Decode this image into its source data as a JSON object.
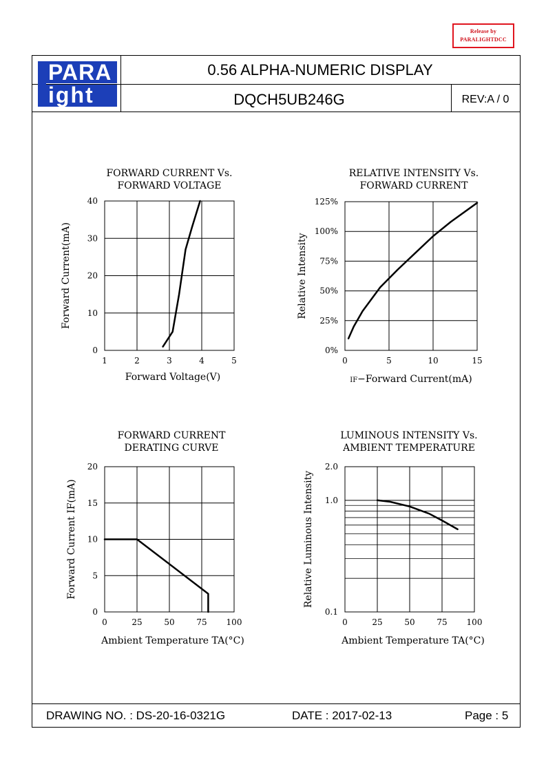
{
  "stamp": {
    "line1": "Release      by",
    "line2": "PARALIGHTDCC"
  },
  "logo": {
    "line1": "PARA",
    "line2": "ight"
  },
  "header": {
    "title": "0.56 ALPHA-NUMERIC DISPLAY",
    "model": "DQCH5UB246G",
    "revision": "REV:A / 0"
  },
  "footer": {
    "drawing_no": "DRAWING NO. : DS-20-16-0321G",
    "date": "DATE : 2017-02-13",
    "page": "Page : 5"
  },
  "chart_data": [
    {
      "type": "line",
      "title": [
        "FORWARD  CURRENT  Vs.",
        "FORWARD  VOLTAGE"
      ],
      "xlabel": "Forward  Voltage(V)",
      "ylabel": "Forward  Current(mA)",
      "xticks": [
        "1",
        "2",
        "3",
        "4",
        "5"
      ],
      "yticks": [
        "0",
        "10",
        "20",
        "30",
        "40"
      ],
      "xlim": [
        1,
        5
      ],
      "ylim": [
        0,
        40
      ],
      "grid": true,
      "x": [
        2.8,
        3.1,
        3.3,
        3.5,
        3.7,
        3.95
      ],
      "y": [
        1,
        5,
        15,
        27,
        33,
        40
      ]
    },
    {
      "type": "line",
      "title": [
        "RELATIVE  INTENSITY  Vs.",
        "FORWARD  CURRENT"
      ],
      "xlabel_prefix": "IF",
      "xlabel": "−Forward  Current(mA)",
      "ylabel": "Relative  Intensity",
      "xticks": [
        "0",
        "5",
        "10",
        "15"
      ],
      "yticks": [
        "0%",
        "25%",
        "50%",
        "75%",
        "100%",
        "125%"
      ],
      "xlim": [
        0,
        15
      ],
      "ylim": [
        0,
        125
      ],
      "grid": true,
      "x": [
        0.4,
        1,
        2,
        4,
        6,
        8,
        10,
        12,
        15
      ],
      "y": [
        10,
        20,
        33,
        53,
        68,
        82,
        96,
        108,
        124
      ]
    },
    {
      "type": "line",
      "title": [
        "FORWARD  CURRENT",
        "DERATING  CURVE"
      ],
      "xlabel": "Ambient  Temperature  TA(°C)",
      "ylabel": "Forward  Current  IF(mA)",
      "xticks": [
        "0",
        "25",
        "50",
        "75",
        "100"
      ],
      "yticks": [
        "0",
        "5",
        "10",
        "15",
        "20"
      ],
      "xlim": [
        0,
        100
      ],
      "ylim": [
        0,
        20
      ],
      "grid": true,
      "x": [
        0,
        25,
        80,
        80
      ],
      "y": [
        10,
        10,
        2.5,
        0
      ]
    },
    {
      "type": "line",
      "title": [
        "LUMINOUS  INTENSITY  Vs.",
        "AMBIENT  TEMPERATURE"
      ],
      "xlabel": "Ambient  Temperature  TA(°C)",
      "ylabel": "Relative  Luminous  Intensity",
      "xticks": [
        "0",
        "25",
        "50",
        "75",
        "100"
      ],
      "yticks": [
        "2.0",
        "1.0",
        "0.1"
      ],
      "xlim": [
        0,
        100
      ],
      "yscale": "log",
      "ylim": [
        0.1,
        2.0
      ],
      "grid": true,
      "x": [
        25,
        35,
        50,
        65,
        75,
        87
      ],
      "y": [
        1.0,
        0.97,
        0.88,
        0.76,
        0.66,
        0.55
      ]
    }
  ]
}
